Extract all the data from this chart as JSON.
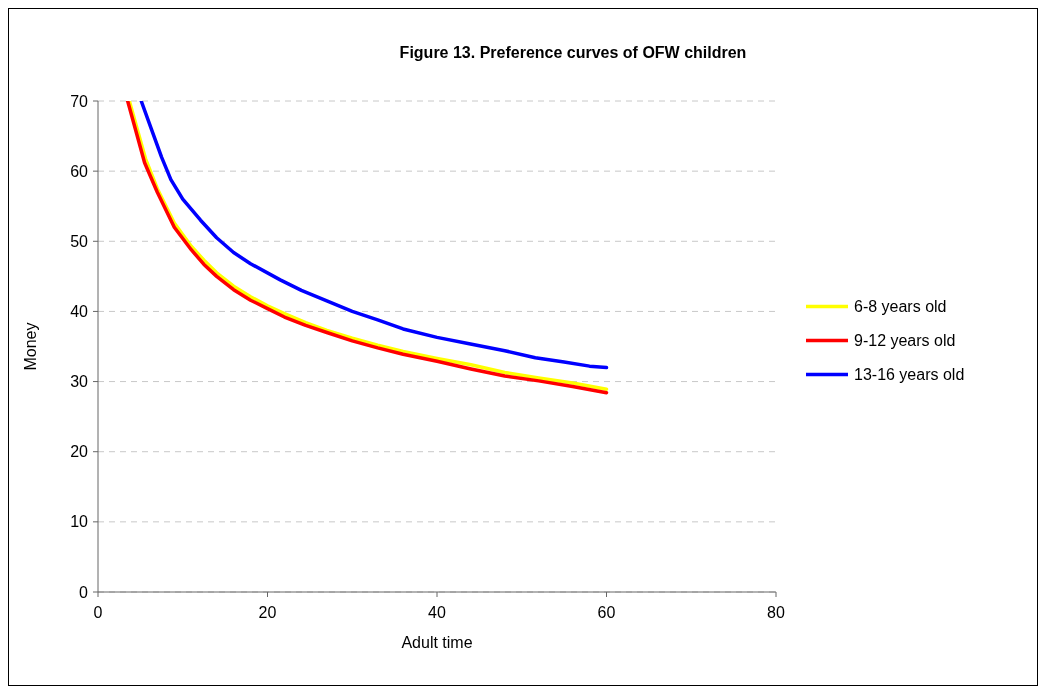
{
  "chart_data": {
    "type": "line",
    "title": "Figure 13. Preference curves of OFW children",
    "xlabel": "Adult time",
    "ylabel": "Money",
    "xlim": [
      0,
      80
    ],
    "ylim": [
      0,
      70
    ],
    "xticks": [
      0,
      20,
      40,
      60,
      80
    ],
    "yticks": [
      0,
      10,
      20,
      30,
      40,
      50,
      60,
      70
    ],
    "grid": "y",
    "legend": "right",
    "marker": "none",
    "series": [
      {
        "name": "6-8 years old",
        "color": "#ffff00",
        "x": [
          3.7,
          5.6,
          7,
          9,
          11,
          12.5,
          14,
          16,
          18,
          20,
          22,
          24.5,
          27,
          30,
          33,
          36,
          40,
          44,
          48,
          52,
          56,
          60
        ],
        "values": [
          70,
          61.8,
          57.5,
          52.6,
          49.3,
          47.3,
          45.5,
          43.6,
          42.1,
          40.8,
          39.7,
          38.4,
          37.3,
          36.2,
          35.2,
          34.3,
          33.3,
          32.4,
          31.3,
          30.5,
          29.8,
          28.9
        ]
      },
      {
        "name": "9-12 years old",
        "color": "#ff0000",
        "x": [
          3.5,
          5.5,
          7,
          9,
          11,
          12.5,
          14,
          16,
          18,
          20,
          22,
          24.5,
          27,
          30,
          33,
          36,
          40,
          44,
          48,
          52,
          56,
          60
        ],
        "values": [
          70,
          61.2,
          57,
          52,
          48.8,
          46.7,
          45,
          43.1,
          41.6,
          40.4,
          39.2,
          38,
          37,
          35.8,
          34.8,
          33.9,
          32.9,
          31.8,
          30.8,
          30.1,
          29.3,
          28.4
        ]
      },
      {
        "name": "13-16 years old",
        "color": "#0000ff",
        "x": [
          5.1,
          6.3,
          7.5,
          8.6,
          10,
          12.1,
          14,
          16,
          18,
          21.5,
          24,
          27,
          30,
          33,
          36,
          40,
          43.8,
          48,
          51.6,
          55,
          58,
          60
        ],
        "values": [
          70,
          66,
          62,
          58.8,
          56,
          53,
          50.5,
          48.4,
          46.8,
          44.5,
          43,
          41.5,
          40,
          38.8,
          37.5,
          36.3,
          35.4,
          34.4,
          33.4,
          32.8,
          32.2,
          32
        ]
      }
    ]
  }
}
